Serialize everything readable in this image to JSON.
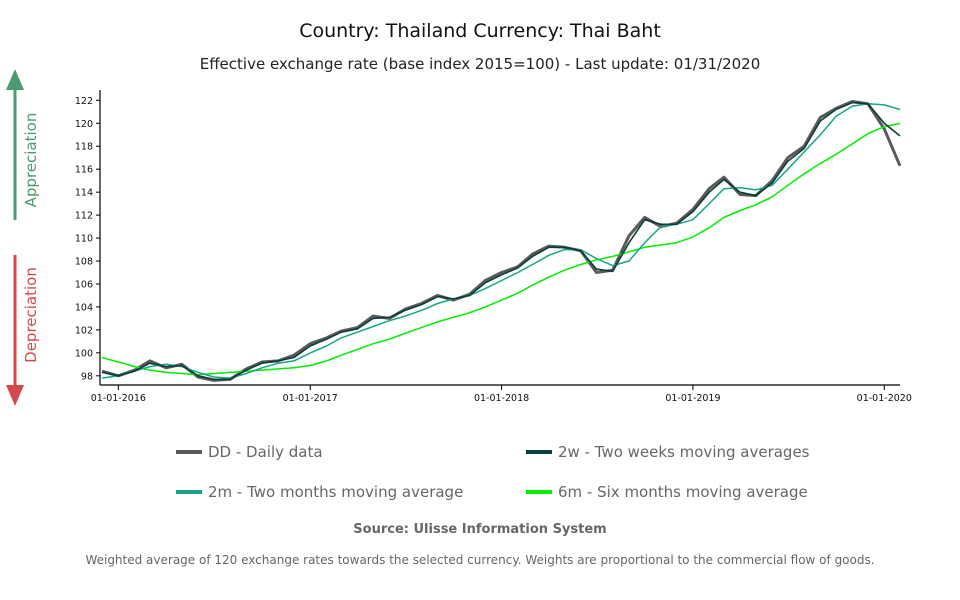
{
  "header": {
    "title": "Country: Thailand Currency: Thai Baht",
    "subtitle": "Effective exchange rate (base index 2015=100) - Last update: 01/31/2020"
  },
  "side": {
    "up_label": "Appreciation",
    "down_label": "Depreciation",
    "up_color": "#4e9a70",
    "down_color": "#d44a4a"
  },
  "legend": [
    {
      "label": "DD - Daily data",
      "color": "#5a5a5a"
    },
    {
      "label": "2w - Two weeks moving averages",
      "color": "#0b3d3a"
    },
    {
      "label": "2m - Two months moving average",
      "color": "#17a589"
    },
    {
      "label": "6m - Six months moving average",
      "color": "#00ee00"
    }
  ],
  "footer": {
    "source": "Source: Ulisse Information System",
    "note": "Weighted average of 120 exchange rates towards the selected currency. Weights are proportional to the commercial flow of goods."
  },
  "chart_data": {
    "type": "line",
    "ylim": [
      97.2,
      122.9
    ],
    "xlim": [
      "2015-11-27",
      "2020-01-31"
    ],
    "yticks": [
      98,
      100,
      102,
      104,
      106,
      108,
      110,
      112,
      114,
      116,
      118,
      120,
      122
    ],
    "xticks": [
      "01-01-2016",
      "01-01-2017",
      "01-01-2018",
      "01-01-2019",
      "01-01-2020"
    ],
    "x": [
      "2015-12-01",
      "2016-01-01",
      "2016-02-01",
      "2016-03-01",
      "2016-04-01",
      "2016-05-01",
      "2016-06-01",
      "2016-07-01",
      "2016-08-01",
      "2016-09-01",
      "2016-10-01",
      "2016-11-01",
      "2016-12-01",
      "2017-01-01",
      "2017-02-01",
      "2017-03-01",
      "2017-04-01",
      "2017-05-01",
      "2017-06-01",
      "2017-07-01",
      "2017-08-01",
      "2017-09-01",
      "2017-10-01",
      "2017-11-01",
      "2017-12-01",
      "2018-01-01",
      "2018-02-01",
      "2018-03-01",
      "2018-04-01",
      "2018-05-01",
      "2018-06-01",
      "2018-07-01",
      "2018-08-01",
      "2018-09-01",
      "2018-10-01",
      "2018-11-01",
      "2018-12-01",
      "2019-01-01",
      "2019-02-01",
      "2019-03-01",
      "2019-04-01",
      "2019-05-01",
      "2019-06-01",
      "2019-07-01",
      "2019-08-01",
      "2019-09-01",
      "2019-10-01",
      "2019-11-01",
      "2019-12-01",
      "2020-01-01",
      "2020-01-31"
    ],
    "series": [
      {
        "name": "DD - Daily data",
        "values": [
          98.4,
          98.0,
          98.5,
          99.3,
          98.7,
          99.0,
          97.9,
          97.6,
          97.7,
          98.6,
          99.2,
          99.3,
          99.8,
          100.8,
          101.3,
          101.9,
          102.2,
          103.2,
          103.0,
          103.8,
          104.3,
          105.0,
          104.6,
          105.1,
          106.3,
          107.0,
          107.5,
          108.6,
          109.3,
          109.2,
          108.9,
          107.0,
          107.2,
          110.2,
          111.8,
          111.0,
          111.3,
          112.5,
          114.3,
          115.3,
          113.8,
          113.7,
          115.0,
          117.0,
          118.0,
          120.5,
          121.3,
          121.9,
          121.7,
          119.5,
          116.3
        ]
      },
      {
        "name": "2w - Two weeks moving averages",
        "values": [
          98.3,
          98.0,
          98.4,
          99.1,
          98.8,
          98.9,
          98.0,
          97.7,
          97.7,
          98.5,
          99.1,
          99.3,
          99.6,
          100.6,
          101.2,
          101.8,
          102.1,
          103.0,
          103.1,
          103.7,
          104.2,
          104.9,
          104.7,
          105.0,
          106.1,
          106.8,
          107.4,
          108.4,
          109.2,
          109.2,
          108.9,
          107.3,
          107.1,
          109.6,
          111.6,
          111.2,
          111.2,
          112.3,
          114.0,
          115.1,
          114.0,
          113.7,
          114.8,
          116.7,
          117.8,
          120.2,
          121.2,
          121.8,
          121.7,
          120.0,
          118.9
        ]
      },
      {
        "name": "2m - Two months moving average",
        "values": [
          97.8,
          98.0,
          98.4,
          98.8,
          99.0,
          98.8,
          98.3,
          97.9,
          97.8,
          98.2,
          98.7,
          99.1,
          99.3,
          100.0,
          100.6,
          101.3,
          101.8,
          102.3,
          102.8,
          103.2,
          103.7,
          104.3,
          104.7,
          105.0,
          105.6,
          106.3,
          107.0,
          107.7,
          108.5,
          109.0,
          109.0,
          108.2,
          107.6,
          108.0,
          109.6,
          111.0,
          111.2,
          111.6,
          113.0,
          114.3,
          114.4,
          114.2,
          114.6,
          116.0,
          117.5,
          119.0,
          120.6,
          121.5,
          121.7,
          121.6,
          121.2
        ]
      },
      {
        "name": "6m - Six months moving average",
        "values": [
          99.6,
          99.2,
          98.8,
          98.5,
          98.3,
          98.2,
          98.1,
          98.2,
          98.3,
          98.4,
          98.5,
          98.6,
          98.7,
          98.9,
          99.3,
          99.8,
          100.3,
          100.8,
          101.2,
          101.7,
          102.2,
          102.7,
          103.1,
          103.5,
          104.0,
          104.6,
          105.2,
          105.9,
          106.6,
          107.2,
          107.7,
          108.1,
          108.4,
          108.8,
          109.2,
          109.4,
          109.6,
          110.1,
          110.9,
          111.8,
          112.4,
          112.9,
          113.6,
          114.6,
          115.6,
          116.5,
          117.3,
          118.2,
          119.1,
          119.7,
          120.0
        ]
      }
    ]
  }
}
